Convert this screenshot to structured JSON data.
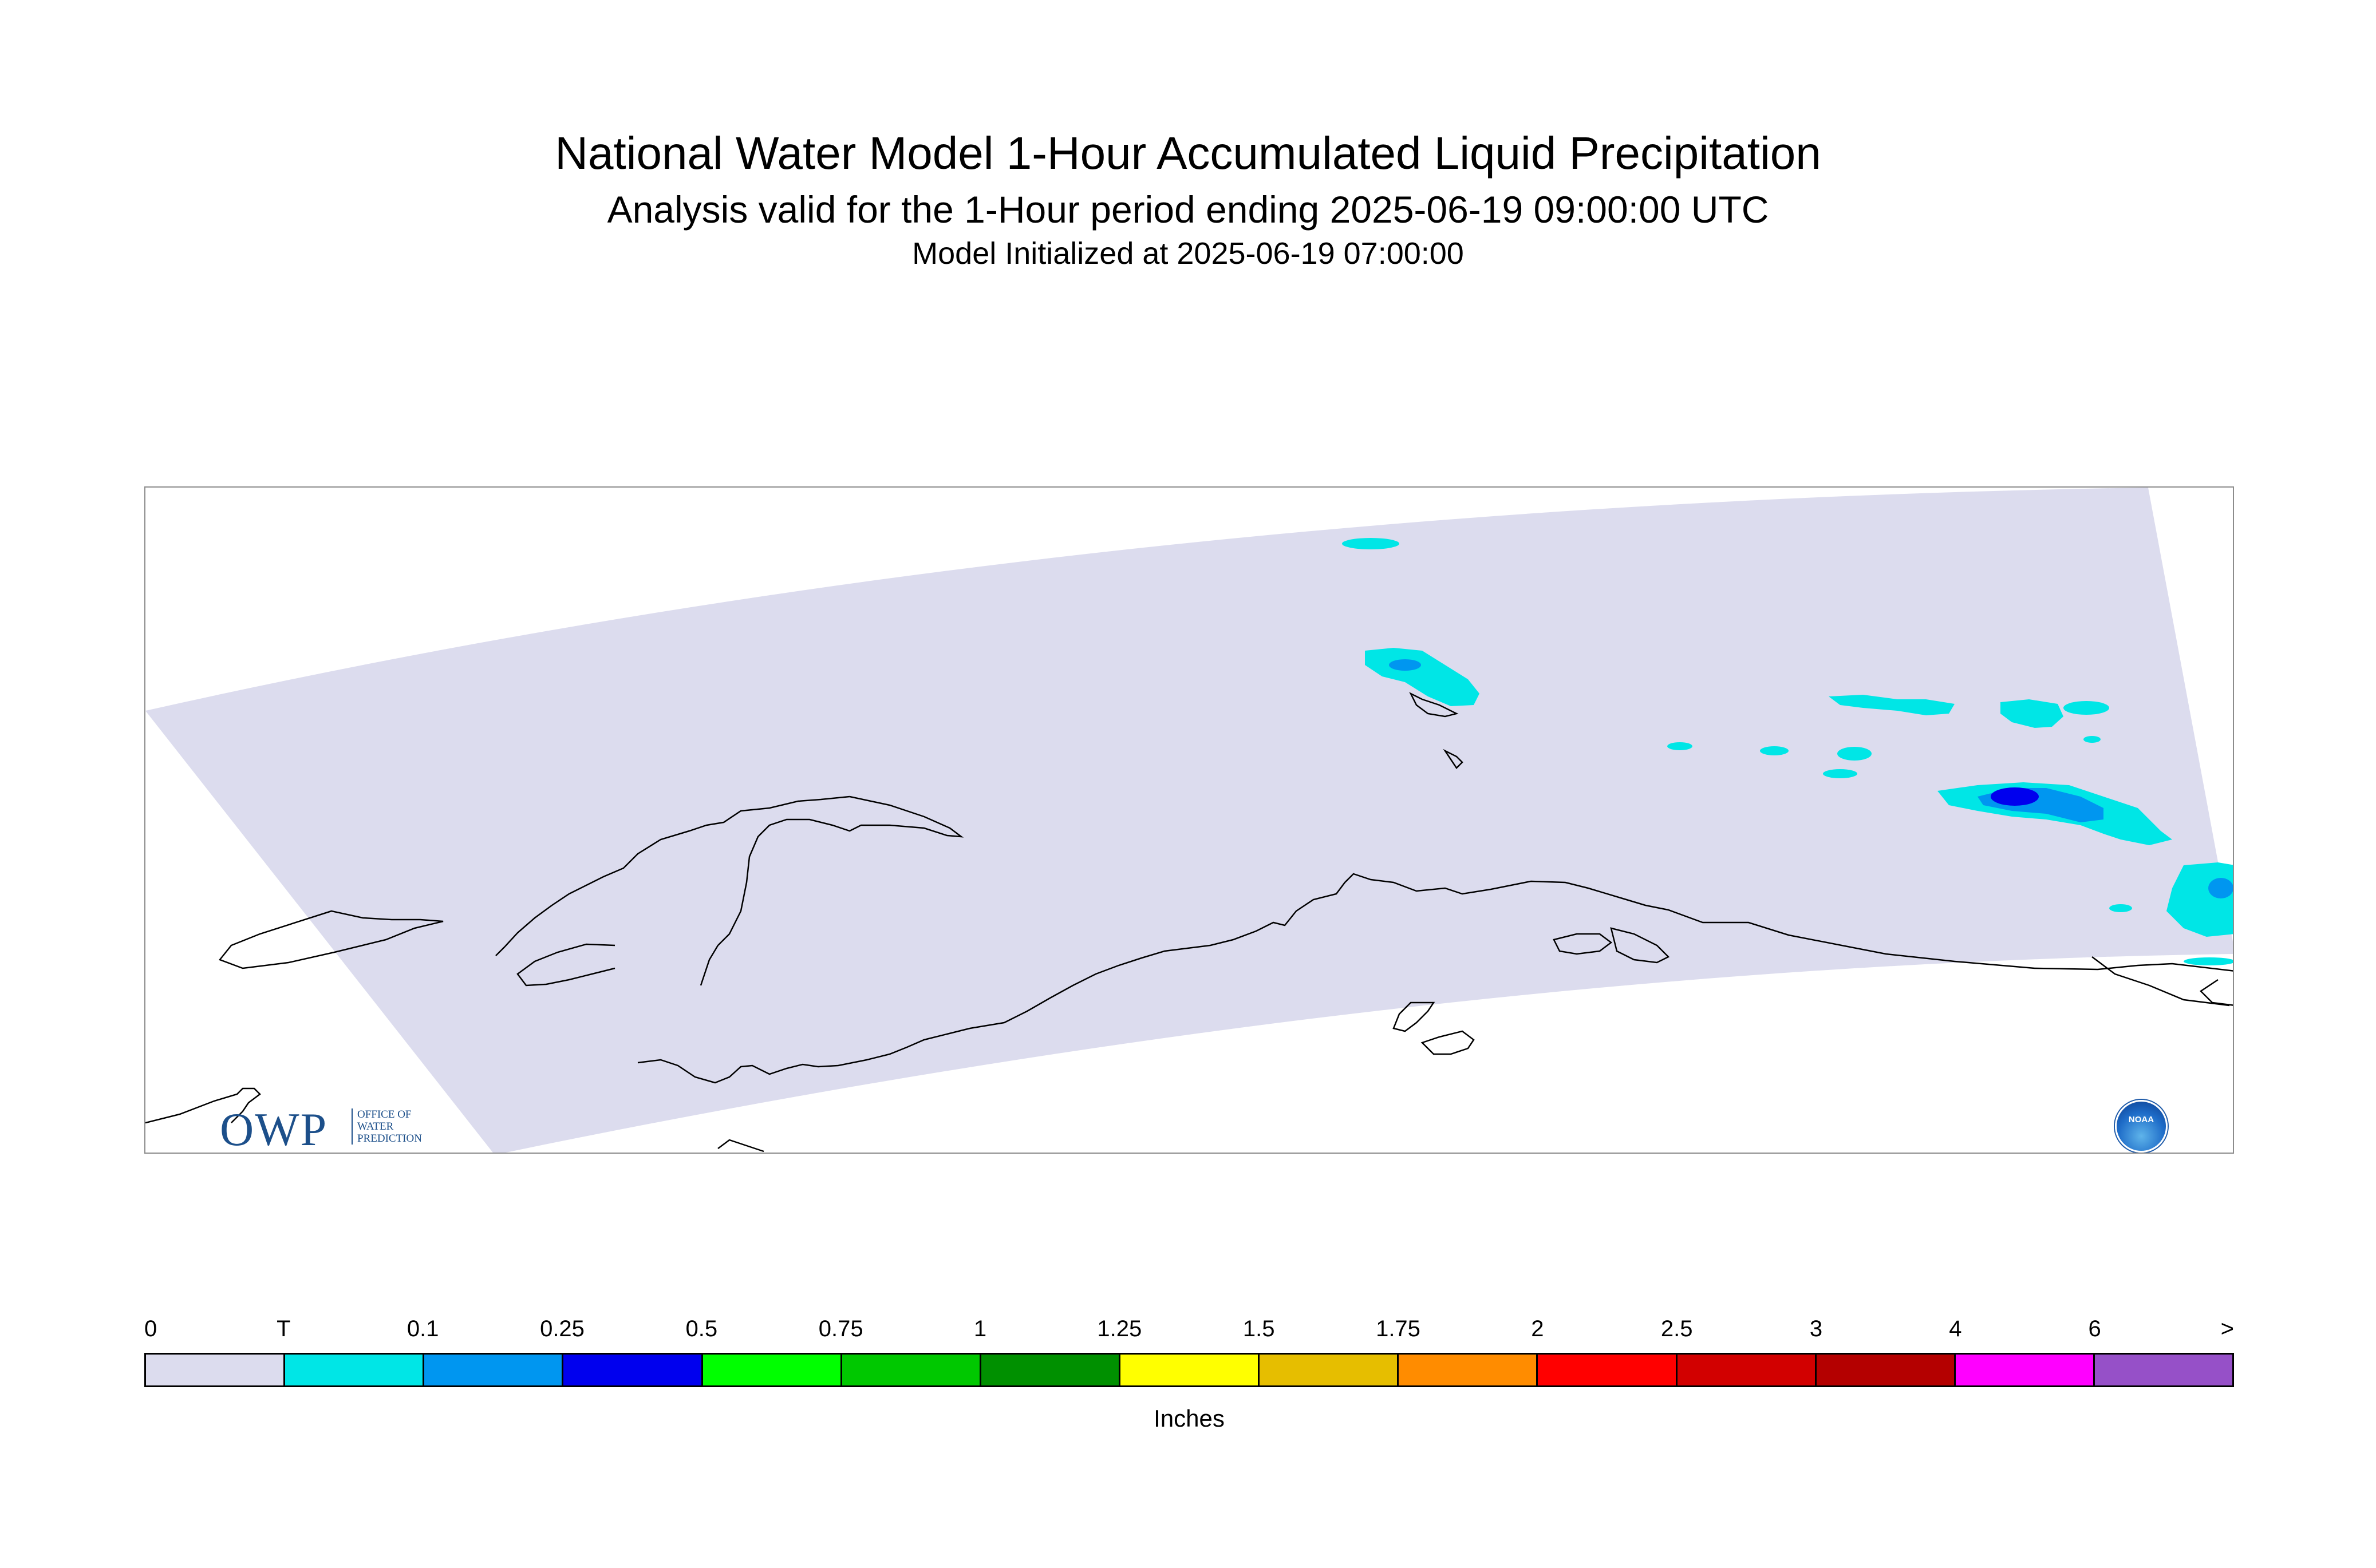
{
  "header": {
    "title": "National Water Model 1-Hour Accumulated Liquid Precipitation",
    "subtitle": "Analysis valid for the 1-Hour period ending 2025-06-19 09:00:00 UTC",
    "init": "Model Initialized at 2025-06-19 07:00:00"
  },
  "map": {
    "domain_fill_color": "#dcdcee",
    "coastline_color": "#000000",
    "logos": {
      "owp_big": "OWP",
      "owp_small_1": "OFFICE OF",
      "owp_small_2": "WATER",
      "owp_small_3": "PREDICTION",
      "noaa": "NOAA"
    }
  },
  "legend": {
    "unit": "Inches",
    "tick_labels": [
      "0",
      "T",
      "0.1",
      "0.25",
      "0.5",
      "0.75",
      "1",
      "1.25",
      "1.5",
      "1.75",
      "2",
      "2.5",
      "3",
      "4",
      "6",
      ">"
    ],
    "colors": [
      "#dcdcee",
      "#00e6e6",
      "#0096f0",
      "#0000ee",
      "#00ff00",
      "#00c800",
      "#009000",
      "#ffff00",
      "#e6be00",
      "#ff8c00",
      "#ff0000",
      "#d20000",
      "#b40000",
      "#ff00ff",
      "#9650c8"
    ]
  }
}
